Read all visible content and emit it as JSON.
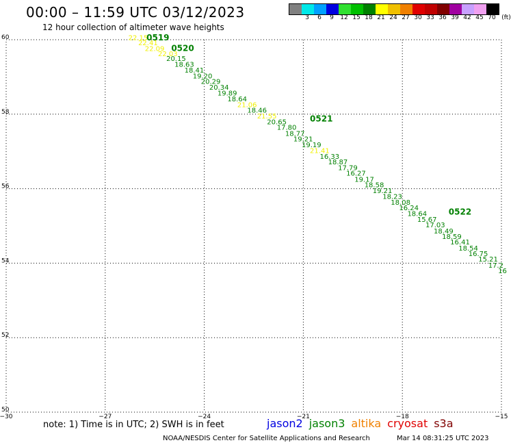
{
  "header": {
    "title": "00:00 – 11:59 UTC 03/12/2023",
    "subtitle": "12 hour collection of altimeter wave heights"
  },
  "color_scale": {
    "unit": "(ft)",
    "swatches": [
      {
        "color": "#808080",
        "label": ""
      },
      {
        "color": "#00e8e8",
        "label": "3"
      },
      {
        "color": "#00a0ff",
        "label": "6"
      },
      {
        "color": "#0000e0",
        "label": "9"
      },
      {
        "color": "#30e030",
        "label": "12"
      },
      {
        "color": "#00c000",
        "label": "15"
      },
      {
        "color": "#008000",
        "label": "18"
      },
      {
        "color": "#ffff00",
        "label": "21"
      },
      {
        "color": "#f0c000",
        "label": "24"
      },
      {
        "color": "#f08000",
        "label": "27"
      },
      {
        "color": "#e00000",
        "label": "30"
      },
      {
        "color": "#c00000",
        "label": "33"
      },
      {
        "color": "#800000",
        "label": "36"
      },
      {
        "color": "#a000a0",
        "label": "39"
      },
      {
        "color": "#c8a0ff",
        "label": "42"
      },
      {
        "color": "#f0a0f0",
        "label": "45"
      },
      {
        "color": "#000000",
        "label": "70"
      }
    ]
  },
  "map": {
    "lon_range": [
      -30,
      -15
    ],
    "lat_range": [
      50,
      60
    ],
    "lon_ticks": [
      -30,
      -27,
      -24,
      -21,
      -18,
      -15
    ],
    "lat_ticks": [
      50,
      52,
      54,
      56,
      58,
      60
    ],
    "lon_tick_labels": [
      "−30",
      "−27",
      "−24",
      "−21",
      "−18",
      "−15"
    ],
    "lat_tick_labels": [
      "50",
      "52",
      "54",
      "56",
      "58",
      "60"
    ],
    "grid": "dotted",
    "time_labels": [
      {
        "text": "0519",
        "lon": -25.75,
        "lat": 59.98,
        "color": "#008000"
      },
      {
        "text": "0520",
        "lon": -25.0,
        "lat": 59.7,
        "color": "#008000"
      },
      {
        "text": "0521",
        "lon": -20.8,
        "lat": 57.8,
        "color": "#008000"
      },
      {
        "text": "0522",
        "lon": -16.6,
        "lat": 55.3,
        "color": "#008000"
      }
    ],
    "swh_points": [
      {
        "text": "22.15",
        "lon": -26.3,
        "lat": 59.99,
        "color": "#f0f000"
      },
      {
        "text": "22.41",
        "lon": -26.0,
        "lat": 59.85,
        "color": "#f0f000"
      },
      {
        "text": "22.09",
        "lon": -25.8,
        "lat": 59.7,
        "color": "#f0f000"
      },
      {
        "text": "22.03",
        "lon": -25.4,
        "lat": 59.56,
        "color": "#f0f000"
      },
      {
        "text": "20.15",
        "lon": -25.15,
        "lat": 59.43,
        "color": "#008000"
      },
      {
        "text": "18.63",
        "lon": -24.9,
        "lat": 59.27,
        "color": "#008000"
      },
      {
        "text": "18.41",
        "lon": -24.6,
        "lat": 59.12,
        "color": "#008000"
      },
      {
        "text": "19.20",
        "lon": -24.35,
        "lat": 58.96,
        "color": "#008000"
      },
      {
        "text": "20.29",
        "lon": -24.1,
        "lat": 58.81,
        "color": "#008000"
      },
      {
        "text": "20.34",
        "lon": -23.85,
        "lat": 58.66,
        "color": "#008000"
      },
      {
        "text": "19.89",
        "lon": -23.6,
        "lat": 58.5,
        "color": "#008000"
      },
      {
        "text": "18.64",
        "lon": -23.3,
        "lat": 58.35,
        "color": "#008000"
      },
      {
        "text": "21.06",
        "lon": -23.0,
        "lat": 58.19,
        "color": "#f0f000"
      },
      {
        "text": "18.46",
        "lon": -22.7,
        "lat": 58.04,
        "color": "#008000"
      },
      {
        "text": "21.55",
        "lon": -22.4,
        "lat": 57.89,
        "color": "#f0f000"
      },
      {
        "text": "20.65",
        "lon": -22.1,
        "lat": 57.73,
        "color": "#008000"
      },
      {
        "text": "17.80",
        "lon": -21.8,
        "lat": 57.58,
        "color": "#008000"
      },
      {
        "text": "18.77",
        "lon": -21.55,
        "lat": 57.42,
        "color": "#008000"
      },
      {
        "text": "19.21",
        "lon": -21.3,
        "lat": 57.27,
        "color": "#008000"
      },
      {
        "text": "19.19",
        "lon": -21.05,
        "lat": 57.11,
        "color": "#008000"
      },
      {
        "text": "21.41",
        "lon": -20.8,
        "lat": 56.96,
        "color": "#f0f000"
      },
      {
        "text": "16.33",
        "lon": -20.5,
        "lat": 56.8,
        "color": "#008000"
      },
      {
        "text": "18.87",
        "lon": -20.25,
        "lat": 56.65,
        "color": "#008000"
      },
      {
        "text": "17.79",
        "lon": -19.95,
        "lat": 56.5,
        "color": "#008000"
      },
      {
        "text": "16.27",
        "lon": -19.7,
        "lat": 56.35,
        "color": "#008000"
      },
      {
        "text": "19.17",
        "lon": -19.45,
        "lat": 56.19,
        "color": "#008000"
      },
      {
        "text": "18.58",
        "lon": -19.15,
        "lat": 56.04,
        "color": "#008000"
      },
      {
        "text": "19.21",
        "lon": -18.9,
        "lat": 55.88,
        "color": "#008000"
      },
      {
        "text": "18.23",
        "lon": -18.6,
        "lat": 55.73,
        "color": "#008000"
      },
      {
        "text": "18.08",
        "lon": -18.35,
        "lat": 55.57,
        "color": "#008000"
      },
      {
        "text": "16.24",
        "lon": -18.1,
        "lat": 55.42,
        "color": "#008000"
      },
      {
        "text": "18.64",
        "lon": -17.85,
        "lat": 55.27,
        "color": "#008000"
      },
      {
        "text": "15.67",
        "lon": -17.55,
        "lat": 55.11,
        "color": "#008000"
      },
      {
        "text": "17.03",
        "lon": -17.3,
        "lat": 54.96,
        "color": "#008000"
      },
      {
        "text": "18.49",
        "lon": -17.05,
        "lat": 54.8,
        "color": "#008000"
      },
      {
        "text": "18.59",
        "lon": -16.8,
        "lat": 54.65,
        "color": "#008000"
      },
      {
        "text": "16.41",
        "lon": -16.55,
        "lat": 54.5,
        "color": "#008000"
      },
      {
        "text": "18.54",
        "lon": -16.3,
        "lat": 54.34,
        "color": "#008000"
      },
      {
        "text": "16.75",
        "lon": -16.0,
        "lat": 54.19,
        "color": "#008000"
      },
      {
        "text": "15.21",
        "lon": -15.7,
        "lat": 54.04,
        "color": "#008000"
      },
      {
        "text": "17.2",
        "lon": -15.4,
        "lat": 53.88,
        "color": "#008000"
      },
      {
        "text": "16",
        "lon": -15.1,
        "lat": 53.73,
        "color": "#008000"
      }
    ]
  },
  "footer": {
    "note": "note: 1) Time is in UTC; 2) SWH is in feet",
    "satellites": [
      {
        "name": "jason2",
        "color": "#0000e0"
      },
      {
        "name": "jason3",
        "color": "#008000"
      },
      {
        "name": "altika",
        "color": "#f08000"
      },
      {
        "name": "cryosat",
        "color": "#e00000"
      },
      {
        "name": "s3a",
        "color": "#800000"
      }
    ],
    "credit": "NOAA/NESDIS Center for Satellite Applications and Research",
    "generated": "Mar 14 08:31:25 UTC 2023"
  }
}
